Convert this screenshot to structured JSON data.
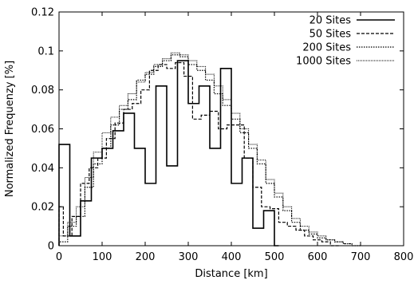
{
  "chart_data": {
    "type": "line",
    "xlabel": "Distance  [km]",
    "ylabel": "Normalized Frequenzy [%]",
    "xlim": [
      0,
      800
    ],
    "ylim": [
      0,
      0.12
    ],
    "xticks": [
      0,
      100,
      200,
      300,
      400,
      500,
      600,
      700,
      800
    ],
    "yticks": [
      0,
      0.02,
      0.04,
      0.06,
      0.08,
      0.1,
      0.12
    ],
    "xtick_labels": [
      "0",
      "100",
      "200",
      "300",
      "400",
      "500",
      "600",
      "700",
      "800"
    ],
    "ytick_labels": [
      "0",
      "0.02",
      "0.04",
      "0.06",
      "0.08",
      "0.1",
      "0.12"
    ],
    "grid": false,
    "legend_position": "top-right",
    "series": [
      {
        "name": "20 Sites",
        "style": "solid",
        "edges": [
          0,
          25,
          50,
          75,
          100,
          125,
          150,
          175,
          200,
          225,
          250,
          275,
          300,
          325,
          350,
          375,
          400,
          425,
          450,
          475,
          500,
          510
        ],
        "values": [
          0.052,
          0.005,
          0.023,
          0.045,
          0.05,
          0.059,
          0.068,
          0.05,
          0.032,
          0.082,
          0.041,
          0.095,
          0.073,
          0.082,
          0.05,
          0.091,
          0.032,
          0.045,
          0.009,
          0.018,
          0.0
        ]
      },
      {
        "name": "50 Sites",
        "style": "dashed",
        "edges": [
          0,
          10,
          30,
          50,
          70,
          90,
          110,
          130,
          150,
          170,
          190,
          210,
          230,
          250,
          270,
          290,
          310,
          330,
          350,
          370,
          390,
          410,
          430,
          450,
          470,
          490,
          510,
          530,
          550,
          570,
          590,
          610,
          630,
          650
        ],
        "values": [
          0.02,
          0.005,
          0.015,
          0.032,
          0.04,
          0.045,
          0.055,
          0.063,
          0.07,
          0.073,
          0.08,
          0.09,
          0.093,
          0.091,
          0.094,
          0.087,
          0.065,
          0.067,
          0.069,
          0.06,
          0.062,
          0.062,
          0.045,
          0.03,
          0.02,
          0.019,
          0.012,
          0.01,
          0.008,
          0.005,
          0.003,
          0.002,
          0.0
        ]
      },
      {
        "name": "200 Sites",
        "style": "dotted",
        "edges": [
          0,
          20,
          40,
          60,
          80,
          100,
          120,
          140,
          160,
          180,
          200,
          220,
          240,
          260,
          280,
          300,
          320,
          340,
          360,
          380,
          400,
          420,
          440,
          460,
          480,
          500,
          520,
          540,
          560,
          580,
          600,
          620,
          640,
          660,
          680,
          700
        ],
        "values": [
          0.002,
          0.01,
          0.015,
          0.03,
          0.042,
          0.05,
          0.062,
          0.07,
          0.075,
          0.085,
          0.088,
          0.092,
          0.095,
          0.098,
          0.097,
          0.093,
          0.09,
          0.085,
          0.078,
          0.072,
          0.065,
          0.058,
          0.05,
          0.042,
          0.032,
          0.025,
          0.018,
          0.012,
          0.008,
          0.006,
          0.004,
          0.003,
          0.002,
          0.001,
          0.0
        ]
      },
      {
        "name": "1000 Sites",
        "style": "dense-dotted",
        "edges": [
          0,
          20,
          40,
          60,
          80,
          100,
          120,
          140,
          160,
          180,
          200,
          220,
          240,
          260,
          280,
          300,
          320,
          340,
          360,
          380,
          400,
          420,
          440,
          460,
          480,
          500,
          520,
          540,
          560,
          580,
          600,
          620,
          640,
          660,
          680,
          700
        ],
        "values": [
          0.005,
          0.012,
          0.02,
          0.035,
          0.048,
          0.058,
          0.066,
          0.072,
          0.078,
          0.084,
          0.089,
          0.093,
          0.096,
          0.099,
          0.098,
          0.095,
          0.092,
          0.088,
          0.082,
          0.075,
          0.068,
          0.06,
          0.052,
          0.044,
          0.034,
          0.027,
          0.02,
          0.014,
          0.01,
          0.007,
          0.005,
          0.003,
          0.002,
          0.001,
          0.0
        ]
      }
    ]
  }
}
